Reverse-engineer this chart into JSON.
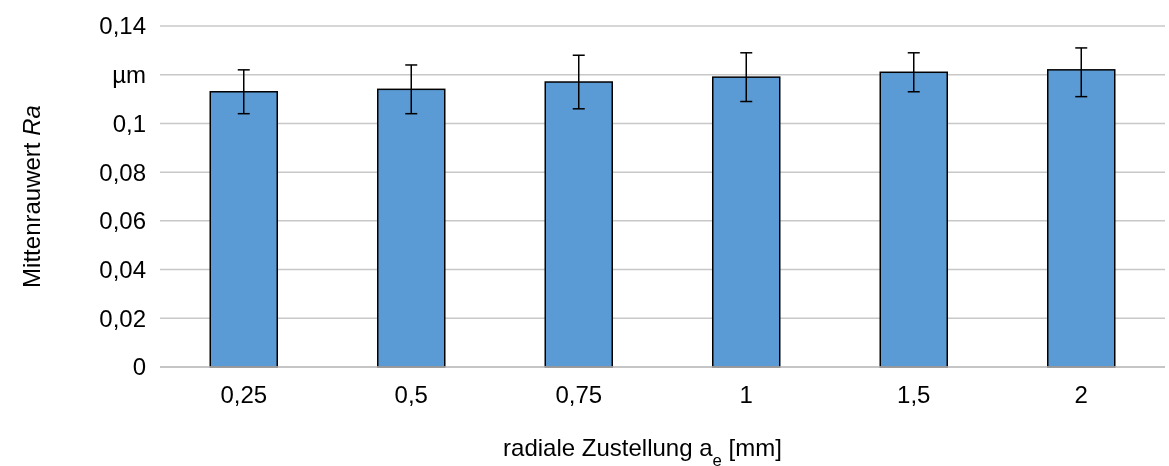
{
  "chart_data": {
    "type": "bar",
    "xlabel": "radiale Zustellung a$_{e}$ [mm]",
    "ylabel": "Mittenrauwert Ra",
    "categories": [
      "0,25",
      "0,5",
      "0,75",
      "1",
      "1,5",
      "2"
    ],
    "values": [
      0.113,
      0.114,
      0.117,
      0.119,
      0.121,
      0.122
    ],
    "errors": [
      [
        0.104,
        0.122
      ],
      [
        0.104,
        0.124
      ],
      [
        0.106,
        0.128
      ],
      [
        0.109,
        0.129
      ],
      [
        0.113,
        0.129
      ],
      [
        0.111,
        0.131
      ]
    ],
    "color": "#5b9bd5",
    "ylim": [
      0,
      0.14
    ],
    "yticks": [
      {
        "value": 0,
        "label": "0"
      },
      {
        "value": 0.02,
        "label": "0,02"
      },
      {
        "value": 0.04,
        "label": "0,04"
      },
      {
        "value": 0.06,
        "label": "0,06"
      },
      {
        "value": 0.08,
        "label": "0,08"
      },
      {
        "value": 0.1,
        "label": "0,1"
      },
      {
        "value": 0.12,
        "label": "µm"
      },
      {
        "value": 0.14,
        "label": "0,14"
      }
    ],
    "grid": "y"
  }
}
